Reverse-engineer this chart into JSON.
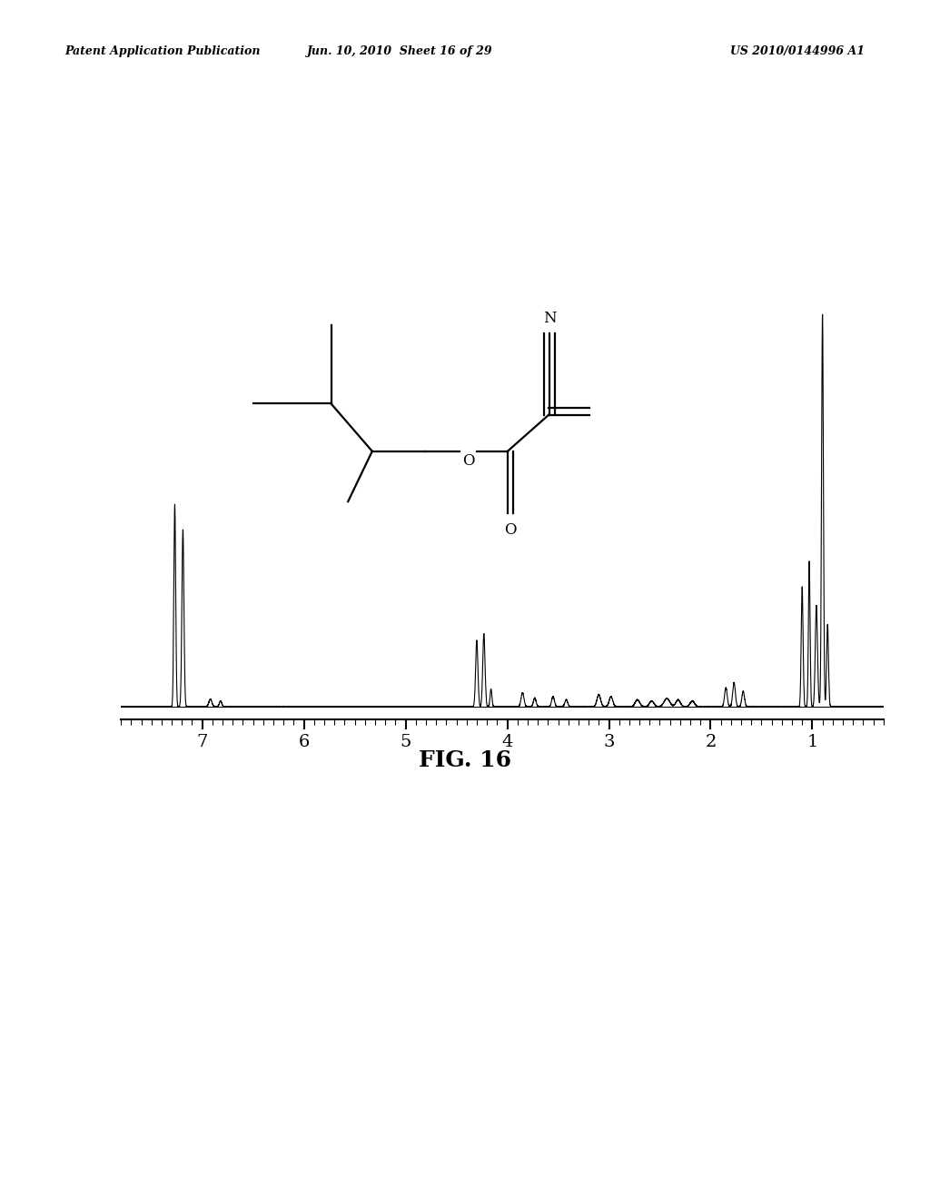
{
  "title": "FIG. 16",
  "header_left": "Patent Application Publication",
  "header_center": "Jun. 10, 2010  Sheet 16 of 29",
  "header_right": "US 2010/0144996 A1",
  "background_color": "#ffffff",
  "spectrum_color": "#000000"
}
